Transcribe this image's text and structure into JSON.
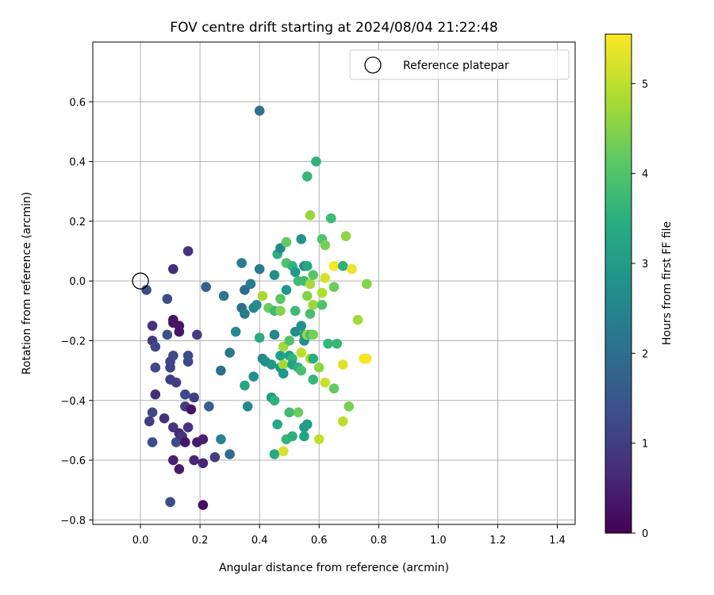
{
  "chart_data": {
    "type": "scatter",
    "title": "FOV centre drift starting at 2024/08/04 21:22:48",
    "xlabel": "Angular distance from reference (arcmin)",
    "ylabel": "Rotation from reference (arcmin)",
    "xlim": [
      -0.16,
      1.46
    ],
    "ylim": [
      -0.815,
      0.8
    ],
    "xticks": [
      0.0,
      0.2,
      0.4,
      0.6,
      0.8,
      1.0,
      1.2,
      1.4
    ],
    "xtick_labels": [
      "0.0",
      "0.2",
      "0.4",
      "0.6",
      "0.8",
      "1.0",
      "1.2",
      "1.4"
    ],
    "yticks": [
      -0.8,
      -0.6,
      -0.4,
      -0.2,
      0.0,
      0.2,
      0.4,
      0.6
    ],
    "ytick_labels": [
      "−0.8",
      "−0.6",
      "−0.4",
      "−0.2",
      "0.0",
      "0.2",
      "0.4",
      "0.6"
    ],
    "grid": true,
    "legend": {
      "placement": "top-right",
      "entries": [
        "Reference platepar"
      ]
    },
    "reference_point": {
      "x": 0.0,
      "y": 0.0
    },
    "colorbar": {
      "label": "Hours from first FF file",
      "range": [
        0,
        5.55
      ],
      "ticks": [
        0,
        1,
        2,
        3,
        4,
        5
      ],
      "tick_labels": [
        "0",
        "1",
        "2",
        "3",
        "4",
        "5"
      ],
      "colormap": "viridis"
    },
    "points": [
      [
        0.02,
        -0.03,
        1.3
      ],
      [
        0.04,
        -0.2,
        0.9
      ],
      [
        0.04,
        -0.15,
        0.8
      ],
      [
        0.05,
        -0.22,
        1.2
      ],
      [
        0.04,
        -0.44,
        1.2
      ],
      [
        0.03,
        -0.47,
        1.0
      ],
      [
        0.04,
        -0.54,
        1.3
      ],
      [
        0.05,
        -0.38,
        0.7
      ],
      [
        0.05,
        -0.29,
        1.2
      ],
      [
        0.08,
        -0.46,
        0.8
      ],
      [
        0.09,
        -0.18,
        1.4
      ],
      [
        0.09,
        -0.06,
        1.3
      ],
      [
        0.1,
        -0.27,
        1.1
      ],
      [
        0.1,
        -0.29,
        1.1
      ],
      [
        0.1,
        -0.33,
        1.0
      ],
      [
        0.1,
        -0.74,
        1.3
      ],
      [
        0.11,
        -0.49,
        0.9
      ],
      [
        0.11,
        -0.6,
        0.5
      ],
      [
        0.11,
        0.04,
        0.7
      ],
      [
        0.11,
        -0.13,
        0.3
      ],
      [
        0.11,
        -0.14,
        0.3
      ],
      [
        0.11,
        -0.25,
        1.2
      ],
      [
        0.12,
        -0.34,
        1.0
      ],
      [
        0.12,
        -0.54,
        1.3
      ],
      [
        0.13,
        -0.15,
        0.3
      ],
      [
        0.13,
        -0.17,
        0.3
      ],
      [
        0.13,
        -0.51,
        0.6
      ],
      [
        0.13,
        -0.63,
        0.4
      ],
      [
        0.14,
        -0.52,
        0.9
      ],
      [
        0.15,
        -0.38,
        1.2
      ],
      [
        0.15,
        -0.42,
        1.0
      ],
      [
        0.15,
        -0.54,
        0.3
      ],
      [
        0.16,
        0.1,
        0.8
      ],
      [
        0.16,
        -0.25,
        1.2
      ],
      [
        0.16,
        -0.27,
        1.2
      ],
      [
        0.16,
        -0.49,
        0.8
      ],
      [
        0.17,
        -0.43,
        0.3
      ],
      [
        0.18,
        -0.39,
        1.0
      ],
      [
        0.18,
        -0.6,
        0.6
      ],
      [
        0.19,
        -0.18,
        1.0
      ],
      [
        0.19,
        -0.54,
        0.4
      ],
      [
        0.21,
        -0.53,
        0.5
      ],
      [
        0.21,
        -0.61,
        0.6
      ],
      [
        0.21,
        -0.75,
        0.2
      ],
      [
        0.22,
        -0.02,
        1.7
      ],
      [
        0.23,
        -0.42,
        1.7
      ],
      [
        0.25,
        -0.59,
        1.0
      ],
      [
        0.27,
        -0.3,
        2.0
      ],
      [
        0.27,
        -0.53,
        2.5
      ],
      [
        0.28,
        -0.05,
        2.2
      ],
      [
        0.3,
        -0.24,
        2.2
      ],
      [
        0.3,
        -0.58,
        1.9
      ],
      [
        0.32,
        -0.17,
        2.6
      ],
      [
        0.34,
        0.06,
        2.3
      ],
      [
        0.34,
        -0.09,
        2.0
      ],
      [
        0.35,
        -0.03,
        1.9
      ],
      [
        0.35,
        -0.35,
        3.3
      ],
      [
        0.35,
        -0.11,
        2.3
      ],
      [
        0.36,
        -0.42,
        2.6
      ],
      [
        0.37,
        -0.01,
        2.3
      ],
      [
        0.38,
        -0.09,
        2.6
      ],
      [
        0.38,
        -0.32,
        2.8
      ],
      [
        0.39,
        -0.08,
        2.7
      ],
      [
        0.4,
        0.57,
        2.1
      ],
      [
        0.4,
        0.04,
        2.3
      ],
      [
        0.4,
        -0.19,
        3.4
      ],
      [
        0.41,
        -0.05,
        4.8
      ],
      [
        0.41,
        -0.26,
        2.6
      ],
      [
        0.42,
        -0.27,
        2.8
      ],
      [
        0.43,
        -0.09,
        4.3
      ],
      [
        0.44,
        -0.39,
        3.0
      ],
      [
        0.44,
        -0.28,
        2.9
      ],
      [
        0.45,
        0.02,
        2.7
      ],
      [
        0.45,
        -0.1,
        3.8
      ],
      [
        0.45,
        -0.18,
        2.6
      ],
      [
        0.45,
        -0.4,
        3.5
      ],
      [
        0.45,
        -0.58,
        3.3
      ],
      [
        0.46,
        0.09,
        3.5
      ],
      [
        0.46,
        -0.48,
        3.3
      ],
      [
        0.47,
        0.11,
        2.6
      ],
      [
        0.47,
        -0.06,
        4.1
      ],
      [
        0.47,
        -0.1,
        4.5
      ],
      [
        0.47,
        -0.25,
        3.1
      ],
      [
        0.47,
        -0.29,
        2.9
      ],
      [
        0.48,
        -0.22,
        4.8
      ],
      [
        0.48,
        -0.28,
        4.8
      ],
      [
        0.48,
        -0.31,
        2.9
      ],
      [
        0.48,
        -0.57,
        5.2
      ],
      [
        0.49,
        0.13,
        4.2
      ],
      [
        0.49,
        0.06,
        4.0
      ],
      [
        0.49,
        -0.03,
        2.9
      ],
      [
        0.49,
        -0.53,
        3.6
      ],
      [
        0.5,
        -0.2,
        4.0
      ],
      [
        0.5,
        -0.25,
        3.1
      ],
      [
        0.5,
        -0.44,
        3.8
      ],
      [
        0.51,
        0.05,
        3.6
      ],
      [
        0.51,
        -0.26,
        3.7
      ],
      [
        0.51,
        -0.28,
        3.2
      ],
      [
        0.51,
        -0.52,
        3.5
      ],
      [
        0.52,
        0.03,
        3.0
      ],
      [
        0.52,
        -0.1,
        3.8
      ],
      [
        0.52,
        -0.17,
        2.7
      ],
      [
        0.53,
        0.0,
        3.8
      ],
      [
        0.53,
        -0.29,
        3.5
      ],
      [
        0.53,
        -0.44,
        4.3
      ],
      [
        0.54,
        0.14,
        2.8
      ],
      [
        0.54,
        -0.15,
        2.8
      ],
      [
        0.54,
        -0.24,
        5.0
      ],
      [
        0.54,
        -0.3,
        3.9
      ],
      [
        0.55,
        0.05,
        2.6
      ],
      [
        0.55,
        0.0,
        3.8
      ],
      [
        0.55,
        -0.2,
        2.7
      ],
      [
        0.55,
        -0.18,
        3.2
      ],
      [
        0.55,
        -0.49,
        3.0
      ],
      [
        0.55,
        -0.52,
        3.2
      ],
      [
        0.56,
        0.35,
        3.7
      ],
      [
        0.56,
        0.05,
        3.3
      ],
      [
        0.56,
        -0.05,
        4.5
      ],
      [
        0.56,
        -0.18,
        4.8
      ],
      [
        0.56,
        -0.48,
        3.1
      ],
      [
        0.57,
        0.22,
        4.7
      ],
      [
        0.57,
        -0.01,
        4.8
      ],
      [
        0.57,
        -0.11,
        3.9
      ],
      [
        0.57,
        -0.18,
        3.9
      ],
      [
        0.57,
        -0.26,
        4.9
      ],
      [
        0.58,
        0.02,
        4.1
      ],
      [
        0.58,
        -0.08,
        4.7
      ],
      [
        0.58,
        -0.18,
        4.4
      ],
      [
        0.58,
        -0.33,
        3.7
      ],
      [
        0.58,
        -0.26,
        3.4
      ],
      [
        0.59,
        0.4,
        3.6
      ],
      [
        0.6,
        -0.29,
        4.6
      ],
      [
        0.6,
        -0.53,
        5.0
      ],
      [
        0.61,
        0.14,
        4.0
      ],
      [
        0.61,
        -0.04,
        4.9
      ],
      [
        0.61,
        -0.08,
        4.0
      ],
      [
        0.62,
        0.12,
        4.4
      ],
      [
        0.62,
        0.01,
        5.2
      ],
      [
        0.62,
        -0.34,
        5.1
      ],
      [
        0.63,
        -0.21,
        3.7
      ],
      [
        0.64,
        0.21,
        3.8
      ],
      [
        0.65,
        0.05,
        5.5
      ],
      [
        0.65,
        -0.02,
        4.3
      ],
      [
        0.65,
        -0.36,
        4.2
      ],
      [
        0.66,
        -0.21,
        3.7
      ],
      [
        0.68,
        0.05,
        3.5
      ],
      [
        0.68,
        -0.28,
        5.3
      ],
      [
        0.68,
        -0.47,
        5.0
      ],
      [
        0.69,
        0.15,
        4.6
      ],
      [
        0.7,
        -0.42,
        4.4
      ],
      [
        0.71,
        0.04,
        5.4
      ],
      [
        0.73,
        -0.13,
        4.8
      ],
      [
        0.75,
        -0.26,
        5.5
      ],
      [
        0.76,
        -0.26,
        5.5
      ],
      [
        0.76,
        -0.01,
        4.5
      ]
    ]
  }
}
